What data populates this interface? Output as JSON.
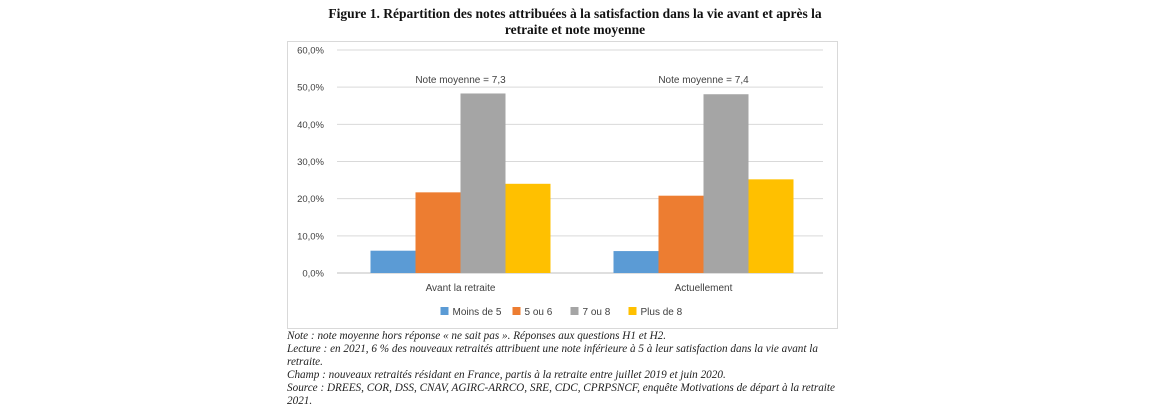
{
  "figure": {
    "title_line1": "Figure 1. Répartition des notes attribuées à la satisfaction dans la vie avant et après la",
    "title_line2": "retraite et note moyenne"
  },
  "chart_data": {
    "type": "bar",
    "title": "Figure 1. Répartition des notes attribuées à la satisfaction dans la vie avant et après la retraite et note moyenne",
    "categories": [
      "Avant la retraite",
      "Actuellement"
    ],
    "series": [
      {
        "name": "Moins de 5",
        "color": "#5b9bd5",
        "values": [
          6.0,
          5.9
        ]
      },
      {
        "name": "5 ou 6",
        "color": "#ed7d31",
        "values": [
          21.7,
          20.8
        ]
      },
      {
        "name": "7 ou 8",
        "color": "#a5a5a5",
        "values": [
          48.3,
          48.1
        ]
      },
      {
        "name": "Plus de 8",
        "color": "#ffc000",
        "values": [
          24.0,
          25.2
        ]
      }
    ],
    "annotations": [
      "Note moyenne = 7,3",
      "Note moyenne = 7,4"
    ],
    "yticks": [
      "0,0%",
      "10,0%",
      "20,0%",
      "30,0%",
      "40,0%",
      "50,0%",
      "60,0%"
    ],
    "ylim": [
      0,
      60
    ],
    "ystep": 10,
    "grid": true,
    "legend_position": "bottom",
    "xlabel": "",
    "ylabel": ""
  },
  "notes": {
    "note": "Note : note moyenne hors réponse « ne sait pas ». Réponses aux questions H1 et H2.",
    "lecture": "Lecture : en 2021, 6 % des nouveaux retraités attribuent une note inférieure à 5 à leur satisfaction dans la vie avant la retraite.",
    "champ": "Champ : nouveaux retraités résidant en France, partis à la retraite entre juillet 2019 et juin 2020.",
    "source": "Source : DREES, COR, DSS, CNAV, AGIRC-ARRCO, SRE, CDC, CPRPSNCF, enquête Motivations de départ à la retraite 2021."
  }
}
